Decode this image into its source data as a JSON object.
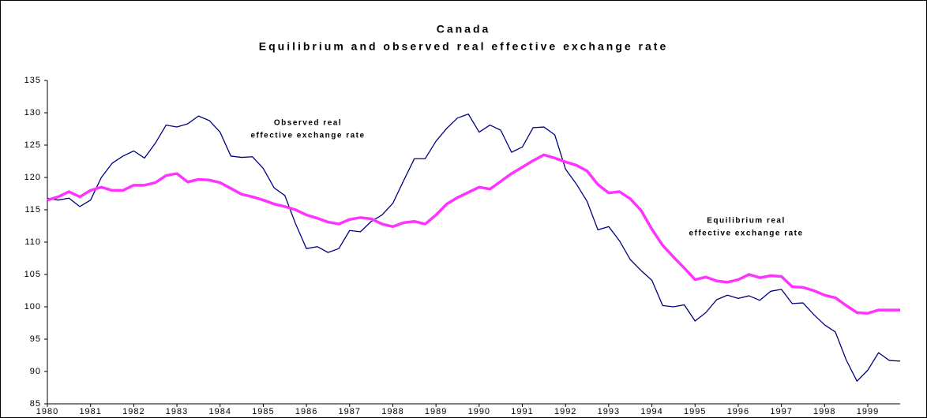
{
  "chart_data": {
    "type": "line",
    "title": [
      "Canada",
      "Equilibrium and observed real effective exchange rate"
    ],
    "categories": [
      "1980",
      null,
      null,
      null,
      "1981",
      null,
      null,
      null,
      "1982",
      null,
      null,
      null,
      "1983",
      null,
      null,
      null,
      "1984",
      null,
      null,
      null,
      "1985",
      null,
      null,
      null,
      "1986",
      null,
      null,
      null,
      "1987",
      null,
      null,
      null,
      "1988",
      null,
      null,
      null,
      "1989",
      null,
      null,
      null,
      "1990",
      null,
      null,
      null,
      "1991",
      null,
      null,
      null,
      "1992",
      null,
      null,
      null,
      "1993",
      null,
      null,
      null,
      "1994",
      null,
      null,
      null,
      "1995",
      null,
      null,
      null,
      "1996",
      null,
      null,
      null,
      "1997",
      null,
      null,
      null,
      "1998",
      null,
      null,
      null,
      "1999",
      null,
      null,
      null
    ],
    "series": [
      {
        "name": "Observed real effective exchange rate",
        "color": "#000080",
        "width": 1.3,
        "values": [
          116.8,
          116.5,
          116.8,
          115.5,
          116.5,
          120,
          122.2,
          123.3,
          124.1,
          123,
          125.3,
          128.1,
          127.8,
          128.3,
          129.5,
          128.8,
          127,
          123.3,
          123.1,
          123.2,
          121.4,
          118.4,
          117.2,
          112.8,
          109,
          109.3,
          108.4,
          109,
          111.8,
          111.6,
          113.2,
          114.2,
          116,
          119.5,
          122.9,
          122.9,
          125.6,
          127.6,
          129.2,
          129.8,
          127,
          128.1,
          127.3,
          123.9,
          124.7,
          127.7,
          127.8,
          126.6,
          121.3,
          119,
          116.3,
          111.9,
          112.4,
          110.2,
          107.3,
          105.6,
          104.1,
          100.2,
          100,
          100.3,
          97.8,
          99.1,
          101.1,
          101.8,
          101.3,
          101.7,
          101,
          102.4,
          102.7,
          100.5,
          100.6,
          98.8,
          97.2,
          96.1,
          91.8,
          88.5,
          90.2,
          92.9,
          91.7,
          91.6
        ]
      },
      {
        "name": "Equilibrium real effective exchange rate",
        "color": "#ff33ff",
        "width": 3.5,
        "values": [
          116.5,
          117,
          117.8,
          117,
          118,
          118.5,
          118,
          118,
          118.8,
          118.8,
          119.2,
          120.3,
          120.6,
          119.3,
          119.7,
          119.6,
          119.2,
          118.3,
          117.4,
          117,
          116.5,
          115.9,
          115.5,
          115,
          114.2,
          113.7,
          113.1,
          112.8,
          113.5,
          113.8,
          113.6,
          112.8,
          112.4,
          113,
          113.2,
          112.8,
          114.2,
          115.9,
          116.9,
          117.7,
          118.5,
          118.2,
          119.4,
          120.6,
          121.6,
          122.6,
          123.5,
          123,
          122.4,
          121.9,
          121,
          118.9,
          117.6,
          117.8,
          116.7,
          114.9,
          112,
          109.5,
          107.7,
          106,
          104.2,
          104.6,
          104,
          103.8,
          104.2,
          105,
          104.5,
          104.8,
          104.7,
          103.1,
          103,
          102.5,
          101.8,
          101.4,
          100.2,
          99.1,
          99,
          99.5,
          99.5,
          99.5
        ]
      }
    ],
    "annotations": [
      [
        "Observed real",
        "effective exchange rate"
      ],
      [
        "Equilibrium real",
        "effective exchange rate"
      ]
    ],
    "ylim": [
      85,
      135
    ],
    "yticks": [
      85,
      90,
      95,
      100,
      105,
      110,
      115,
      120,
      125,
      130,
      135
    ],
    "grid": false
  }
}
